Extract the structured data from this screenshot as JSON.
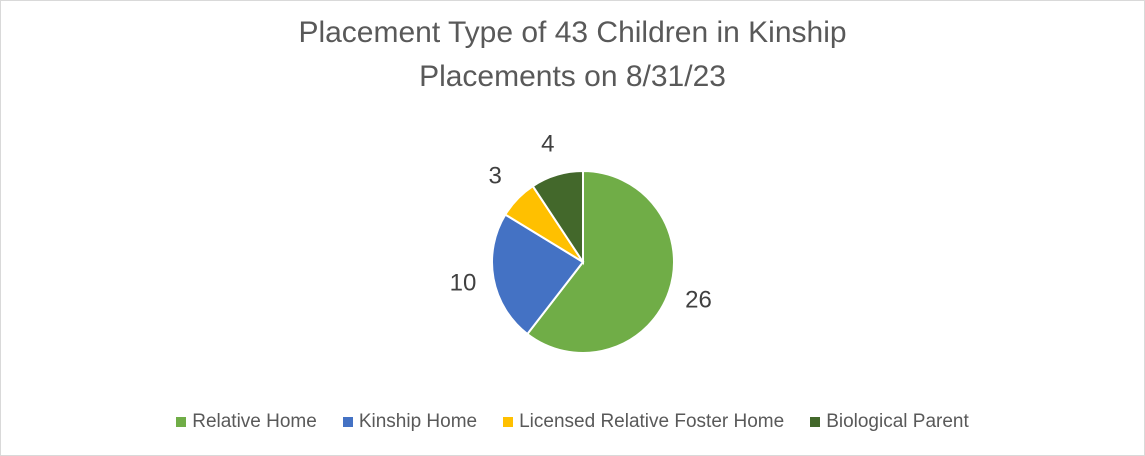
{
  "chart_data": {
    "type": "pie",
    "title": "Placement Type of 43 Children in Kinship Placements on 8/31/23",
    "categories": [
      "Relative Home",
      "Kinship Home",
      "Licensed Relative Foster Home",
      "Biological Parent"
    ],
    "values": [
      26,
      10,
      3,
      4
    ],
    "colors": [
      "#70ad47",
      "#4472c4",
      "#ffc000",
      "#43682b"
    ],
    "legend": "bottom"
  }
}
